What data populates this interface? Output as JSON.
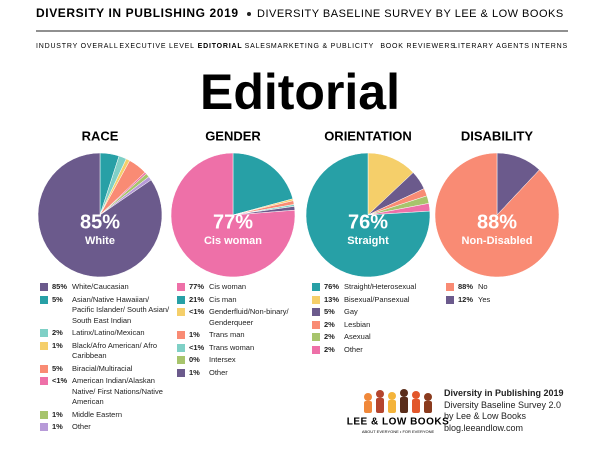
{
  "header": {
    "title": "DIVERSITY IN PUBLISHING 2019",
    "subtitle": "DIVERSITY BASELINE SURVEY BY LEE & LOW BOOKS"
  },
  "nav": {
    "items": [
      "INDUSTRY OVERALL",
      "EXECUTIVE LEVEL",
      "EDITORIAL",
      "SALES",
      "MARKETING & PUBLICITY",
      "BOOK REVIEWERS",
      "LITERARY AGENTS",
      "INTERNS"
    ],
    "active_index": 2
  },
  "page_title": "Editorial",
  "chart_data": [
    {
      "type": "pie",
      "title": "RACE",
      "center_label": "White",
      "categories": [
        "White/Caucasian",
        "Asian/Native Hawaiian/ Pacific Islander/ South Asian/ South East Indian",
        "Latinx/Latino/Mexican",
        "Black/Afro American/ Afro Caribbean",
        "Biracial/Multiracial",
        "American Indian/Alaskan Native/ First Nations/Native American",
        "Middle Eastern",
        "Other"
      ],
      "values": [
        85,
        5,
        2,
        1,
        5,
        0.5,
        1,
        1
      ],
      "value_labels": [
        "85%",
        "5%",
        "2%",
        "1%",
        "5%",
        "<1%",
        "1%",
        "1%"
      ],
      "colors": [
        "#6b5a8c",
        "#27a0a6",
        "#7fd0c6",
        "#f5cf6a",
        "#f98b74",
        "#ee70a8",
        "#a7c46c",
        "#b79ad8"
      ]
    },
    {
      "type": "pie",
      "title": "GENDER",
      "center_label": "Cis woman",
      "categories": [
        "Cis woman",
        "Cis man",
        "Genderfluid/Non-binary/ Genderqueer",
        "Trans man",
        "Trans woman",
        "Intersex",
        "Other"
      ],
      "values": [
        77,
        21,
        0.5,
        1,
        0.5,
        0,
        1
      ],
      "value_labels": [
        "77%",
        "21%",
        "<1%",
        "1%",
        "<1%",
        "0%",
        "1%"
      ],
      "colors": [
        "#ee70a8",
        "#27a0a6",
        "#f5cf6a",
        "#f98b74",
        "#7fd0c6",
        "#a7c46c",
        "#6b5a8c"
      ]
    },
    {
      "type": "pie",
      "title": "ORIENTATION",
      "center_label": "Straight",
      "categories": [
        "Straight/Heterosexual",
        "Bisexual/Pansexual",
        "Gay",
        "Lesbian",
        "Asexual",
        "Other"
      ],
      "values": [
        76,
        13,
        5,
        2,
        2,
        2
      ],
      "value_labels": [
        "76%",
        "13%",
        "5%",
        "2%",
        "2%",
        "2%"
      ],
      "colors": [
        "#27a0a6",
        "#f5cf6a",
        "#6b5a8c",
        "#f98b74",
        "#a7c46c",
        "#ee70a8"
      ]
    },
    {
      "type": "pie",
      "title": "DISABILITY",
      "center_label": "Non-Disabled",
      "categories": [
        "No",
        "Yes"
      ],
      "values": [
        88,
        12
      ],
      "value_labels": [
        "88%",
        "12%"
      ],
      "colors": [
        "#f98b74",
        "#6b5a8c"
      ]
    }
  ],
  "footer": {
    "logo": "LEE & LOW BOOKS",
    "tagline": "ABOUT EVERYONE • FOR EVERYONE",
    "lines": [
      "Diversity in Publishing 2019",
      "Diversity Baseline Survey 2.0",
      "by Lee & Low Books",
      "blog.leeandlow.com"
    ]
  }
}
